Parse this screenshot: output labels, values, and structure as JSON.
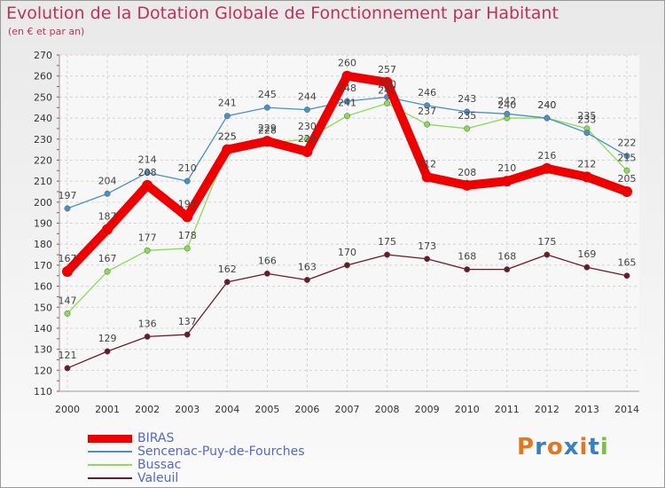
{
  "chart_data": {
    "type": "line",
    "title": "Evolution de la Dotation Globale de Fonctionnement par Habitant",
    "subtitle": "(en € et par an)",
    "xlabel": "",
    "ylabel": "",
    "categories": [
      "2000",
      "2001",
      "2002",
      "2003",
      "2004",
      "2005",
      "2006",
      "2007",
      "2008",
      "2009",
      "2010",
      "2011",
      "2012",
      "2013",
      "2014"
    ],
    "ylim": [
      110,
      270
    ],
    "yticks": [
      110,
      120,
      130,
      140,
      150,
      160,
      170,
      180,
      190,
      200,
      210,
      220,
      230,
      240,
      250,
      260,
      270
    ],
    "grid": true,
    "legend_position": "bottom-left",
    "series": [
      {
        "name": "BIRAS",
        "color": "#ee0000",
        "values": [
          167,
          187,
          208,
          193,
          225,
          229,
          224,
          260,
          257,
          212,
          208,
          210,
          216,
          212,
          205
        ]
      },
      {
        "name": "Sencenac-Puy-de-Fourches",
        "color": "#4a8fc7",
        "values": [
          197,
          204,
          214,
          210,
          241,
          245,
          244,
          248,
          250,
          246,
          243,
          242,
          240,
          233,
          222
        ]
      },
      {
        "name": "Bussac",
        "color": "#88dd55",
        "values": [
          147,
          167,
          177,
          178,
          225,
          228,
          230,
          241,
          247,
          237,
          235,
          240,
          240,
          235,
          215
        ]
      },
      {
        "name": "Valeuil",
        "color": "#6b1a2a",
        "values": [
          121,
          129,
          136,
          137,
          162,
          166,
          163,
          170,
          175,
          173,
          168,
          168,
          175,
          169,
          165
        ]
      }
    ]
  },
  "logo": {
    "text": "Proxiti",
    "colors": [
      "#e07820",
      "#3a7fc0",
      "#e07820",
      "#3a7fc0",
      "#e07820",
      "#3a7fc0",
      "#7ac043"
    ]
  }
}
